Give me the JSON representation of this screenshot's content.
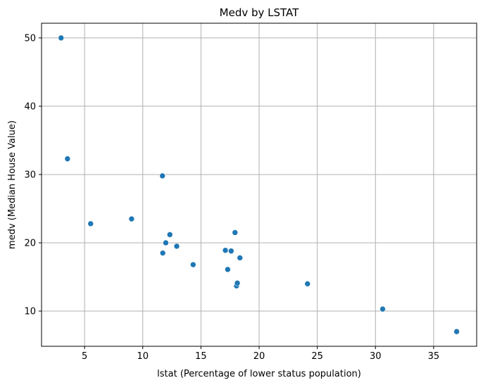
{
  "chart_data": {
    "type": "scatter",
    "title": "Medv by LSTAT",
    "xlabel": "lstat (Percentage of lower status population)",
    "ylabel": "medv (Median House Value)",
    "xlim": [
      1.3,
      38.7
    ],
    "ylim": [
      4.85,
      52.15
    ],
    "xticks": [
      5,
      10,
      15,
      20,
      25,
      30,
      35
    ],
    "yticks": [
      10,
      20,
      30,
      40,
      50
    ],
    "grid": true,
    "marker_color": "#1f77b4",
    "points": [
      {
        "x": 2.98,
        "y": 50.0
      },
      {
        "x": 3.53,
        "y": 32.3
      },
      {
        "x": 5.52,
        "y": 22.8
      },
      {
        "x": 9.04,
        "y": 23.5
      },
      {
        "x": 11.69,
        "y": 29.8
      },
      {
        "x": 11.72,
        "y": 18.5
      },
      {
        "x": 11.98,
        "y": 20.0
      },
      {
        "x": 12.33,
        "y": 21.2
      },
      {
        "x": 12.92,
        "y": 19.5
      },
      {
        "x": 14.33,
        "y": 16.8
      },
      {
        "x": 17.1,
        "y": 18.9
      },
      {
        "x": 17.3,
        "y": 16.1
      },
      {
        "x": 17.6,
        "y": 18.8
      },
      {
        "x": 17.93,
        "y": 21.5
      },
      {
        "x": 18.06,
        "y": 13.7
      },
      {
        "x": 18.13,
        "y": 14.1
      },
      {
        "x": 18.35,
        "y": 17.8
      },
      {
        "x": 24.16,
        "y": 14.0
      },
      {
        "x": 30.62,
        "y": 10.3
      },
      {
        "x": 36.98,
        "y": 7.0
      }
    ]
  }
}
